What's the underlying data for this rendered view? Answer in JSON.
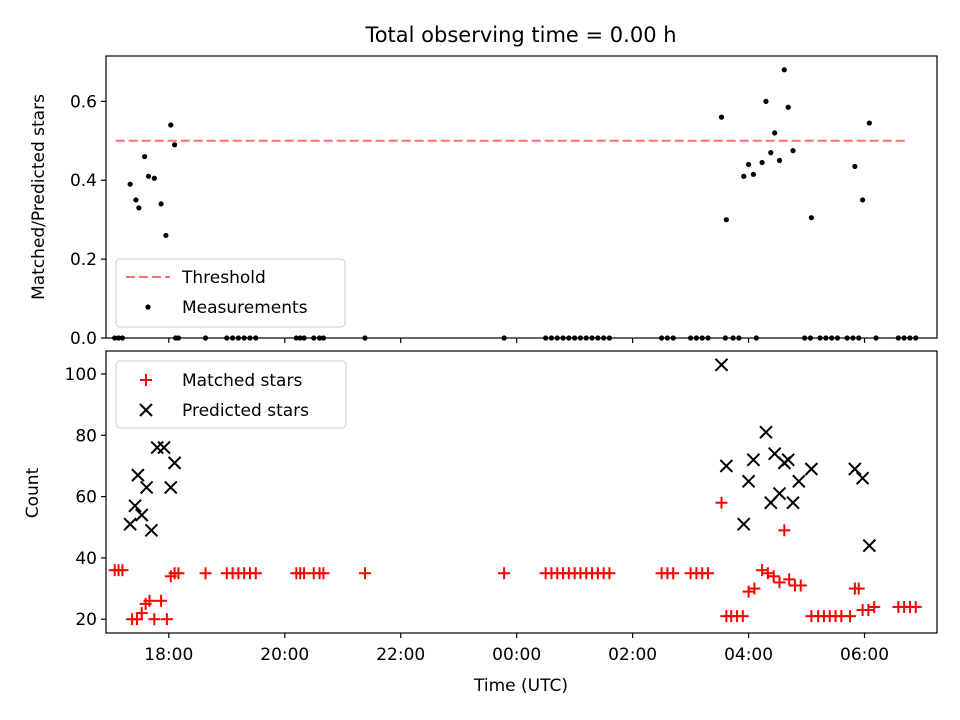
{
  "chart_data": [
    {
      "type": "scatter",
      "title": "Total observing time = 0.00 h",
      "xlabel": "",
      "ylabel": "Matched/Predicted stars",
      "xlim": [
        "16:55",
        "07:15"
      ],
      "ylim": [
        0,
        0.715
      ],
      "yticks": [
        "0.0",
        "0.2",
        "0.4",
        "0.6"
      ],
      "threshold": 0.5,
      "legend": {
        "location": "lower-left",
        "entries": [
          "Threshold",
          "Measurements"
        ]
      },
      "series": [
        {
          "name": "Threshold",
          "style": "dashed-line",
          "color": "#ff7070",
          "x": [
            "17:05",
            "06:45"
          ],
          "y": [
            0.5,
            0.5
          ]
        },
        {
          "name": "Measurements",
          "style": "dot",
          "color": "#000000",
          "points": [
            [
              "17:20",
              0.39
            ],
            [
              "17:26",
              0.35
            ],
            [
              "17:29",
              0.33
            ],
            [
              "17:35",
              0.46
            ],
            [
              "17:39",
              0.41
            ],
            [
              "17:45",
              0.405
            ],
            [
              "17:52",
              0.34
            ],
            [
              "17:57",
              0.26
            ],
            [
              "18:02",
              0.54
            ],
            [
              "18:06",
              0.49
            ],
            [
              "03:32",
              0.56
            ],
            [
              "03:37",
              0.3
            ],
            [
              "03:55",
              0.41
            ],
            [
              "04:00",
              0.44
            ],
            [
              "04:05",
              0.415
            ],
            [
              "04:14",
              0.445
            ],
            [
              "04:18",
              0.6
            ],
            [
              "04:23",
              0.47
            ],
            [
              "04:27",
              0.52
            ],
            [
              "04:32",
              0.45
            ],
            [
              "04:37",
              0.68
            ],
            [
              "04:41",
              0.585
            ],
            [
              "04:46",
              0.475
            ],
            [
              "05:05",
              0.305
            ],
            [
              "05:50",
              0.435
            ],
            [
              "05:58",
              0.35
            ],
            [
              "06:05",
              0.545
            ],
            [
              "17:04",
              0
            ],
            [
              "17:08",
              0
            ],
            [
              "17:12",
              0
            ],
            [
              "18:07",
              0
            ],
            [
              "18:10",
              0
            ],
            [
              "18:38",
              0
            ],
            [
              "19:00",
              0
            ],
            [
              "19:06",
              0
            ],
            [
              "19:12",
              0
            ],
            [
              "19:18",
              0
            ],
            [
              "19:24",
              0
            ],
            [
              "19:30",
              0
            ],
            [
              "20:12",
              0
            ],
            [
              "20:16",
              0
            ],
            [
              "20:20",
              0
            ],
            [
              "20:30",
              0
            ],
            [
              "20:36",
              0
            ],
            [
              "20:40",
              0
            ],
            [
              "21:23",
              0
            ],
            [
              "23:47",
              0
            ],
            [
              "00:30",
              0
            ],
            [
              "00:36",
              0
            ],
            [
              "00:42",
              0
            ],
            [
              "00:48",
              0
            ],
            [
              "00:54",
              0
            ],
            [
              "01:00",
              0
            ],
            [
              "01:06",
              0
            ],
            [
              "01:12",
              0
            ],
            [
              "01:18",
              0
            ],
            [
              "01:24",
              0
            ],
            [
              "01:30",
              0
            ],
            [
              "01:36",
              0
            ],
            [
              "02:30",
              0
            ],
            [
              "02:36",
              0
            ],
            [
              "02:42",
              0
            ],
            [
              "03:00",
              0
            ],
            [
              "03:06",
              0
            ],
            [
              "03:12",
              0
            ],
            [
              "03:18",
              0
            ],
            [
              "03:36",
              0
            ],
            [
              "03:44",
              0
            ],
            [
              "03:50",
              0
            ],
            [
              "04:08",
              0
            ],
            [
              "04:58",
              0
            ],
            [
              "05:04",
              0
            ],
            [
              "05:14",
              0
            ],
            [
              "05:20",
              0
            ],
            [
              "05:26",
              0
            ],
            [
              "05:32",
              0
            ],
            [
              "05:42",
              0
            ],
            [
              "05:48",
              0
            ],
            [
              "05:54",
              0
            ],
            [
              "06:12",
              0
            ],
            [
              "06:35",
              0
            ],
            [
              "06:41",
              0
            ],
            [
              "06:47",
              0
            ],
            [
              "06:53",
              0
            ]
          ]
        }
      ]
    },
    {
      "type": "scatter",
      "title": "",
      "xlabel": "Time (UTC)",
      "ylabel": "Count",
      "xlim": [
        "16:55",
        "07:15"
      ],
      "ylim": [
        15.5,
        107.5
      ],
      "xticks": [
        "18:00",
        "20:00",
        "22:00",
        "00:00",
        "02:00",
        "04:00",
        "06:00"
      ],
      "yticks": [
        "20",
        "40",
        "60",
        "80",
        "100"
      ],
      "legend": {
        "location": "upper-left",
        "entries": [
          "Matched stars",
          "Predicted stars"
        ]
      },
      "series": [
        {
          "name": "Matched stars",
          "marker": "plus",
          "color": "#ff0000",
          "points": [
            [
              "17:04",
              36
            ],
            [
              "17:08",
              36
            ],
            [
              "17:12",
              36
            ],
            [
              "17:22",
              20
            ],
            [
              "17:27",
              20
            ],
            [
              "17:32",
              22
            ],
            [
              "17:36",
              25
            ],
            [
              "17:40",
              26
            ],
            [
              "17:45",
              20
            ],
            [
              "17:52",
              26
            ],
            [
              "17:58",
              20
            ],
            [
              "18:02",
              34
            ],
            [
              "18:06",
              35
            ],
            [
              "18:10",
              35
            ],
            [
              "18:38",
              35
            ],
            [
              "19:00",
              35
            ],
            [
              "19:06",
              35
            ],
            [
              "19:12",
              35
            ],
            [
              "19:18",
              35
            ],
            [
              "19:24",
              35
            ],
            [
              "19:30",
              35
            ],
            [
              "20:12",
              35
            ],
            [
              "20:16",
              35
            ],
            [
              "20:20",
              35
            ],
            [
              "20:30",
              35
            ],
            [
              "20:36",
              35
            ],
            [
              "20:40",
              35
            ],
            [
              "21:23",
              35
            ],
            [
              "23:47",
              35
            ],
            [
              "00:30",
              35
            ],
            [
              "00:36",
              35
            ],
            [
              "00:42",
              35
            ],
            [
              "00:48",
              35
            ],
            [
              "00:54",
              35
            ],
            [
              "01:00",
              35
            ],
            [
              "01:06",
              35
            ],
            [
              "01:12",
              35
            ],
            [
              "01:18",
              35
            ],
            [
              "01:24",
              35
            ],
            [
              "01:30",
              35
            ],
            [
              "01:36",
              35
            ],
            [
              "02:30",
              35
            ],
            [
              "02:36",
              35
            ],
            [
              "02:42",
              35
            ],
            [
              "03:00",
              35
            ],
            [
              "03:06",
              35
            ],
            [
              "03:12",
              35
            ],
            [
              "03:18",
              35
            ],
            [
              "03:32",
              58
            ],
            [
              "03:37",
              21
            ],
            [
              "03:42",
              21
            ],
            [
              "03:48",
              21
            ],
            [
              "03:54",
              21
            ],
            [
              "04:00",
              29
            ],
            [
              "04:06",
              30
            ],
            [
              "04:14",
              36
            ],
            [
              "04:20",
              35
            ],
            [
              "04:26",
              34
            ],
            [
              "04:32",
              32
            ],
            [
              "04:37",
              49
            ],
            [
              "04:42",
              33
            ],
            [
              "04:48",
              31
            ],
            [
              "04:54",
              31
            ],
            [
              "05:05",
              21
            ],
            [
              "05:12",
              21
            ],
            [
              "05:18",
              21
            ],
            [
              "05:24",
              21
            ],
            [
              "05:30",
              21
            ],
            [
              "05:36",
              21
            ],
            [
              "05:45",
              21
            ],
            [
              "05:50",
              30
            ],
            [
              "05:54",
              30
            ],
            [
              "05:58",
              23
            ],
            [
              "06:04",
              23
            ],
            [
              "06:10",
              24
            ],
            [
              "06:35",
              24
            ],
            [
              "06:41",
              24
            ],
            [
              "06:47",
              24
            ],
            [
              "06:53",
              24
            ]
          ]
        },
        {
          "name": "Predicted stars",
          "marker": "cross",
          "color": "#000000",
          "points": [
            [
              "17:20",
              51
            ],
            [
              "17:25",
              57
            ],
            [
              "17:28",
              67
            ],
            [
              "17:32",
              54
            ],
            [
              "17:37",
              63
            ],
            [
              "17:42",
              49
            ],
            [
              "17:48",
              76
            ],
            [
              "17:55",
              76
            ],
            [
              "18:02",
              63
            ],
            [
              "18:06",
              71
            ],
            [
              "03:32",
              103
            ],
            [
              "03:37",
              70
            ],
            [
              "03:55",
              51
            ],
            [
              "04:00",
              65
            ],
            [
              "04:05",
              72
            ],
            [
              "04:18",
              81
            ],
            [
              "04:23",
              58
            ],
            [
              "04:27",
              74
            ],
            [
              "04:32",
              61
            ],
            [
              "04:37",
              71
            ],
            [
              "04:41",
              72
            ],
            [
              "04:46",
              58
            ],
            [
              "04:52",
              65
            ],
            [
              "05:05",
              69
            ],
            [
              "05:50",
              69
            ],
            [
              "05:58",
              66
            ],
            [
              "06:05",
              44
            ]
          ]
        }
      ]
    }
  ]
}
